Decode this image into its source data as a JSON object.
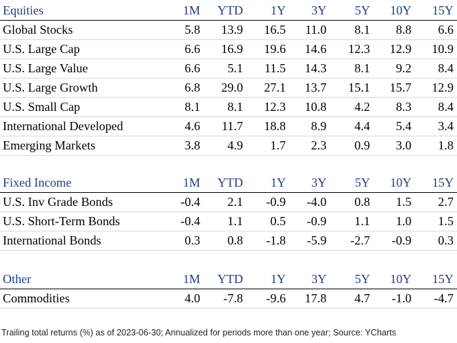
{
  "columns": [
    "1M",
    "YTD",
    "1Y",
    "3Y",
    "5Y",
    "10Y",
    "15Y"
  ],
  "sections": [
    {
      "title": "Equities",
      "rows": [
        {
          "label": "Global Stocks",
          "values": [
            "5.8",
            "13.9",
            "16.5",
            "11.0",
            "8.1",
            "8.8",
            "6.6"
          ]
        },
        {
          "label": "U.S. Large Cap",
          "values": [
            "6.6",
            "16.9",
            "19.6",
            "14.6",
            "12.3",
            "12.9",
            "10.9"
          ]
        },
        {
          "label": "U.S. Large Value",
          "values": [
            "6.6",
            "5.1",
            "11.5",
            "14.3",
            "8.1",
            "9.2",
            "8.4"
          ]
        },
        {
          "label": "U.S. Large Growth",
          "values": [
            "6.8",
            "29.0",
            "27.1",
            "13.7",
            "15.1",
            "15.7",
            "12.9"
          ]
        },
        {
          "label": "U.S. Small Cap",
          "values": [
            "8.1",
            "8.1",
            "12.3",
            "10.8",
            "4.2",
            "8.3",
            "8.4"
          ]
        },
        {
          "label": "International Developed",
          "values": [
            "4.6",
            "11.7",
            "18.8",
            "8.9",
            "4.4",
            "5.4",
            "3.4"
          ]
        },
        {
          "label": "Emerging Markets",
          "values": [
            "3.8",
            "4.9",
            "1.7",
            "2.3",
            "0.9",
            "3.0",
            "1.8"
          ]
        }
      ]
    },
    {
      "title": "Fixed Income",
      "rows": [
        {
          "label": "U.S. Inv Grade Bonds",
          "values": [
            "-0.4",
            "2.1",
            "-0.9",
            "-4.0",
            "0.8",
            "1.5",
            "2.7"
          ]
        },
        {
          "label": "U.S. Short-Term Bonds",
          "values": [
            "-0.4",
            "1.1",
            "0.5",
            "-0.9",
            "1.1",
            "1.0",
            "1.5"
          ]
        },
        {
          "label": "International Bonds",
          "values": [
            "0.3",
            "0.8",
            "-1.8",
            "-5.9",
            "-2.7",
            "-0.9",
            "0.3"
          ]
        }
      ]
    },
    {
      "title": "Other",
      "rows": [
        {
          "label": "Commodities",
          "values": [
            "4.0",
            "-7.8",
            "-9.6",
            "17.8",
            "4.7",
            "-1.0",
            "-4.7"
          ]
        }
      ]
    }
  ],
  "footnote": "Trailing total returns (%) as of 2023-06-30; Annualized for periods more than one year; Source: YCharts",
  "colors": {
    "header_text": "#1f3c88",
    "rule": "#000000",
    "row_divider": "#d9d9d9"
  }
}
